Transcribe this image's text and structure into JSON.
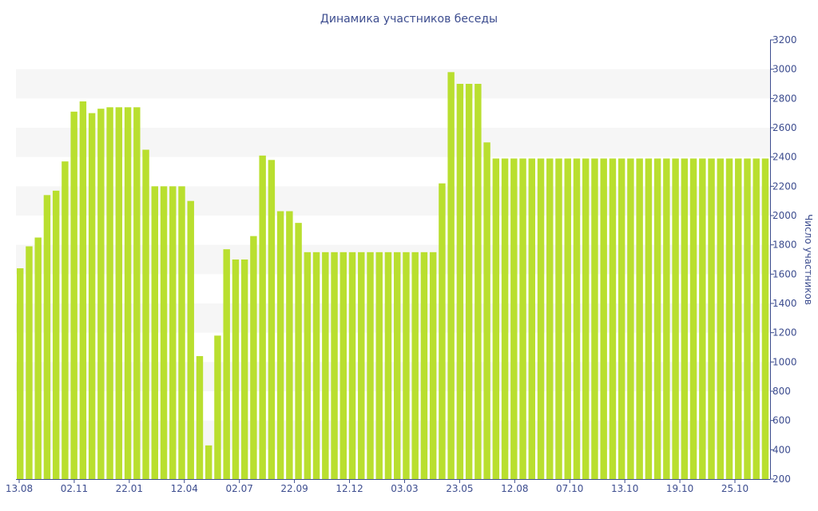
{
  "chart_data": {
    "type": "bar",
    "title": "Динамика участников беседы",
    "xlabel": "",
    "ylabel": "Число участников",
    "ylim": [
      200,
      3200
    ],
    "yticks": [
      200,
      400,
      600,
      800,
      1000,
      1200,
      1400,
      1600,
      1800,
      2000,
      2200,
      2400,
      2600,
      2800,
      3000,
      3200
    ],
    "xtick_labels": [
      "13.08",
      "02.11",
      "22.01",
      "12.04",
      "02.07",
      "22.09",
      "12.12",
      "03.03",
      "23.05",
      "12.08",
      "07.10",
      "13.10",
      "19.10",
      "25.10"
    ],
    "bar_color": "#b9df2f",
    "band_color": "#f6f6f6",
    "axis_color": "#3d4d8f",
    "grid": "alternating horizontal bands",
    "legend": "none",
    "values": [
      1640,
      1790,
      1850,
      2140,
      2170,
      2370,
      2710,
      2780,
      2700,
      2730,
      2740,
      2740,
      2740,
      2740,
      2450,
      2200,
      2200,
      2200,
      2200,
      2100,
      1040,
      430,
      1180,
      1770,
      1700,
      1700,
      1860,
      2410,
      2380,
      2030,
      2030,
      1950,
      1750,
      1750,
      1750,
      1750,
      1750,
      1750,
      1750,
      1750,
      1750,
      1750,
      1750,
      1750,
      1750,
      1750,
      1750,
      2220,
      2980,
      2900,
      2900,
      2900,
      2500,
      2390,
      2390,
      2390,
      2390,
      2390,
      2390,
      2390,
      2390,
      2390,
      2390,
      2390,
      2390,
      2390,
      2390,
      2390,
      2390,
      2390,
      2390,
      2390,
      2390,
      2390,
      2390,
      2390,
      2390,
      2390,
      2390,
      2390,
      2390,
      2390,
      2390,
      2390
    ]
  }
}
